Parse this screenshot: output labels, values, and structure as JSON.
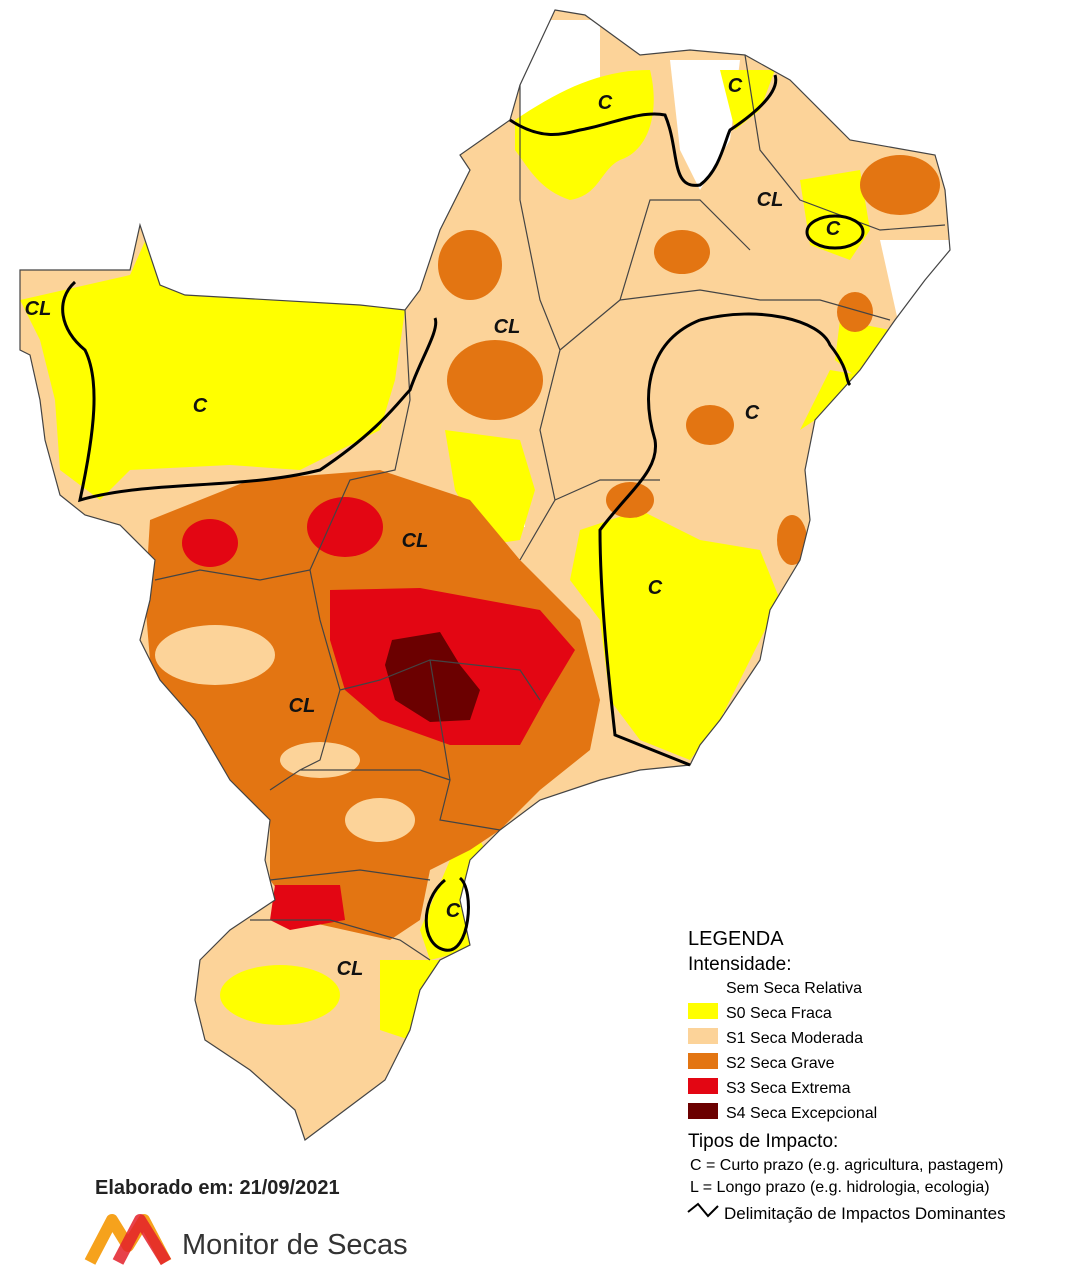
{
  "map_labels": [
    "C",
    "C",
    "CL",
    "C",
    "CL",
    "CL",
    "C",
    "C",
    "CL",
    "C",
    "CL",
    "C",
    "CL"
  ],
  "legend": {
    "title": "LEGENDA",
    "intensity_heading": "Intensidade:",
    "items": [
      {
        "label": "Sem Seca Relativa",
        "color": "#ffffff"
      },
      {
        "label": "S0 Seca Fraca",
        "color": "#ffff00"
      },
      {
        "label": "S1 Seca Moderada",
        "color": "#fcd399"
      },
      {
        "label": "S2 Seca Grave",
        "color": "#e37512"
      },
      {
        "label": "S3 Seca Extrema",
        "color": "#e30613"
      },
      {
        "label": "S4 Seca Excepcional",
        "color": "#6b0000"
      }
    ],
    "impact_heading": "Tipos de Impacto:",
    "impact_types": [
      "C = Curto prazo (e.g. agricultura, pastagem)",
      "L = Longo prazo (e.g. hidrologia, ecologia)"
    ],
    "boundary_label": "Delimitação de Impactos Dominantes"
  },
  "footer": {
    "date": "Elaborado em: 21/09/2021",
    "brand": "Monitor de Secas"
  }
}
